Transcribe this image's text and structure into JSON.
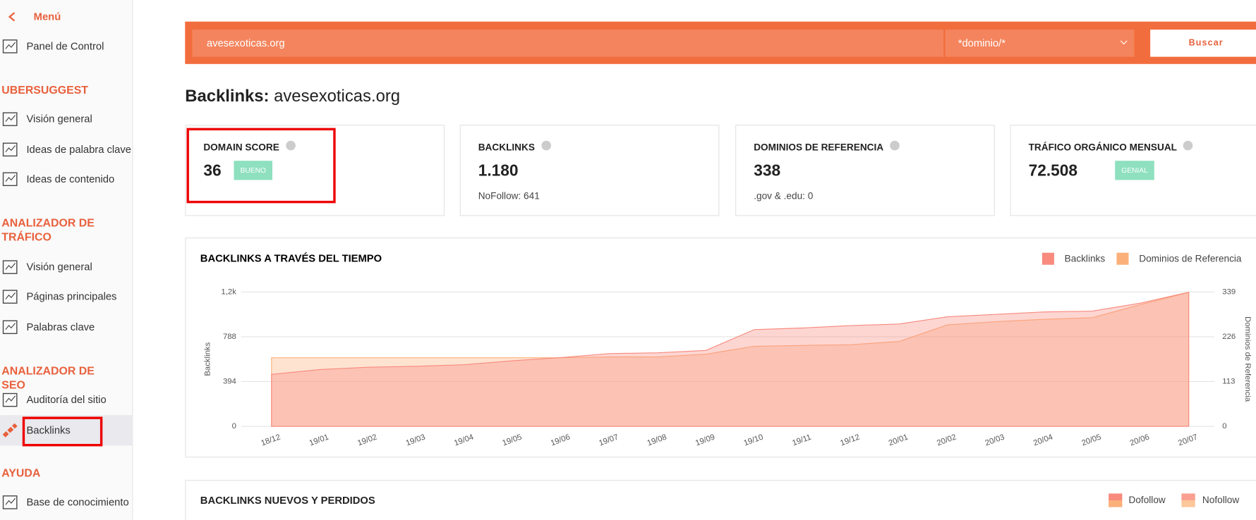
{
  "sidebar": {
    "back": "Menú",
    "sections": [
      {
        "items": [
          "Panel de Control"
        ]
      },
      {
        "heading": "UBERSUGGEST",
        "items": [
          "Visión general",
          "Ideas de palabra clave",
          "Ideas de contenido"
        ]
      },
      {
        "heading": "ANALIZADOR DE TRÁFICO",
        "items": [
          "Visión general",
          "Páginas principales",
          "Palabras clave"
        ]
      },
      {
        "heading": "ANALIZADOR DE SEO",
        "items": [
          "Auditoría del sitio",
          "Backlinks"
        ]
      },
      {
        "heading": "AYUDA",
        "items": [
          "Base de conocimiento"
        ]
      }
    ]
  },
  "search": {
    "query": "avesexoticas.org",
    "mode": "*dominio/*",
    "button": "Buscar"
  },
  "heading": {
    "label": "Backlinks:",
    "domain": "avesexoticas.org"
  },
  "cards": [
    {
      "title": "DOMAIN SCORE",
      "value": "36",
      "badge": "BUENO"
    },
    {
      "title": "BACKLINKS",
      "value": "1.180",
      "note": "NoFollow: 641"
    },
    {
      "title": "DOMINIOS DE REFERENCIA",
      "value": "338",
      "note": ".gov & .edu: 0"
    },
    {
      "title": "TRÁFICO ORGÁNICO MENSUAL",
      "value": "72.508",
      "badge": "GENIAL"
    }
  ],
  "chart_data": {
    "type": "area",
    "title": "BACKLINKS A TRAVÉS DEL TIEMPO",
    "y_label": "Backlinks",
    "y2_label": "Dominios de Referencia",
    "categories": [
      "18/12",
      "19/01",
      "19/02",
      "19/03",
      "19/04",
      "19/05",
      "19/06",
      "19/07",
      "19/08",
      "19/09",
      "19/10",
      "19/11",
      "19/12",
      "20/01",
      "20/02",
      "20/03",
      "20/04",
      "20/05",
      "20/06",
      "20/07"
    ],
    "series": [
      {
        "name": "Backlinks",
        "color": "#f88a7e",
        "values": [
          457,
          500,
          520,
          528,
          542,
          577,
          605,
          640,
          647,
          668,
          851,
          865,
          886,
          900,
          964,
          985,
          1006,
          1013,
          1084,
          1180
        ]
      },
      {
        "name": "Dominios de Referencia",
        "color": "#fbb07a",
        "axis": "y2",
        "values": [
          173,
          173,
          173,
          173,
          173,
          173,
          173,
          175,
          175,
          182,
          202,
          204,
          206,
          214,
          256,
          264,
          270,
          274,
          307,
          338
        ]
      }
    ],
    "ylim": [
      0,
      1182
    ],
    "yticks": [
      0,
      394,
      788,
      {
        "value": 1182,
        "label": "1,2k"
      }
    ],
    "y2lim": [
      0,
      339
    ],
    "y2ticks": [
      0,
      113,
      226,
      339
    ],
    "grid": true,
    "legend": "top-right"
  },
  "section2": {
    "title": "BACKLINKS NUEVOS Y PERDIDOS",
    "legend": [
      "Dofollow",
      "Nofollow"
    ]
  }
}
